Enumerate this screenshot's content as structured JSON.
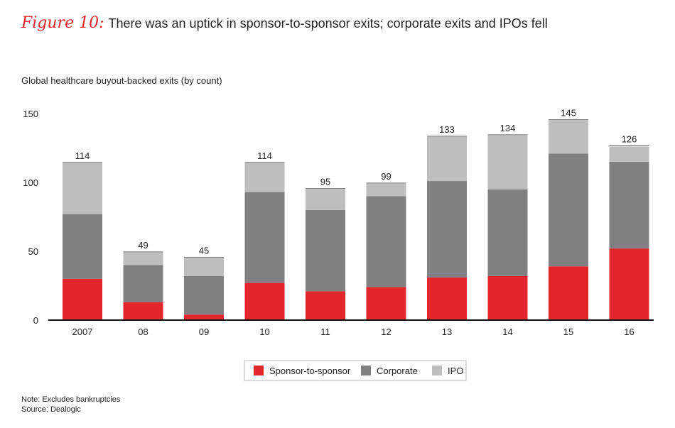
{
  "figure": {
    "label": "Figure 10:",
    "title": "There was an uptick in sponsor-to-sponsor exits; corporate exits and IPOs fell"
  },
  "subtitle": "Global healthcare buyout-backed exits (by count)",
  "notes": {
    "note": "Note: Excludes bankruptcies",
    "source": "Source: Dealogic"
  },
  "chart_data": {
    "type": "bar",
    "stacked": true,
    "categories": [
      "2007",
      "08",
      "09",
      "10",
      "11",
      "12",
      "13",
      "14",
      "15",
      "16"
    ],
    "series": [
      {
        "name": "Sponsor-to-sponsor",
        "color": "#e3262b",
        "values": [
          30,
          13,
          4,
          27,
          21,
          24,
          31,
          32,
          39,
          52
        ]
      },
      {
        "name": "Corporate",
        "color": "#808083",
        "values": [
          47,
          27,
          28,
          66,
          59,
          66,
          70,
          63,
          82,
          63
        ]
      },
      {
        "name": "IPO",
        "color": "#bebec0",
        "values": [
          37,
          9,
          13,
          21,
          15,
          9,
          32,
          39,
          24,
          11
        ]
      }
    ],
    "totals": [
      114,
      49,
      45,
      114,
      95,
      99,
      133,
      134,
      145,
      126
    ],
    "ylim": [
      0,
      150
    ],
    "yticks": [
      0,
      50,
      100,
      150
    ],
    "grid": false,
    "legend": "bottom-center"
  }
}
